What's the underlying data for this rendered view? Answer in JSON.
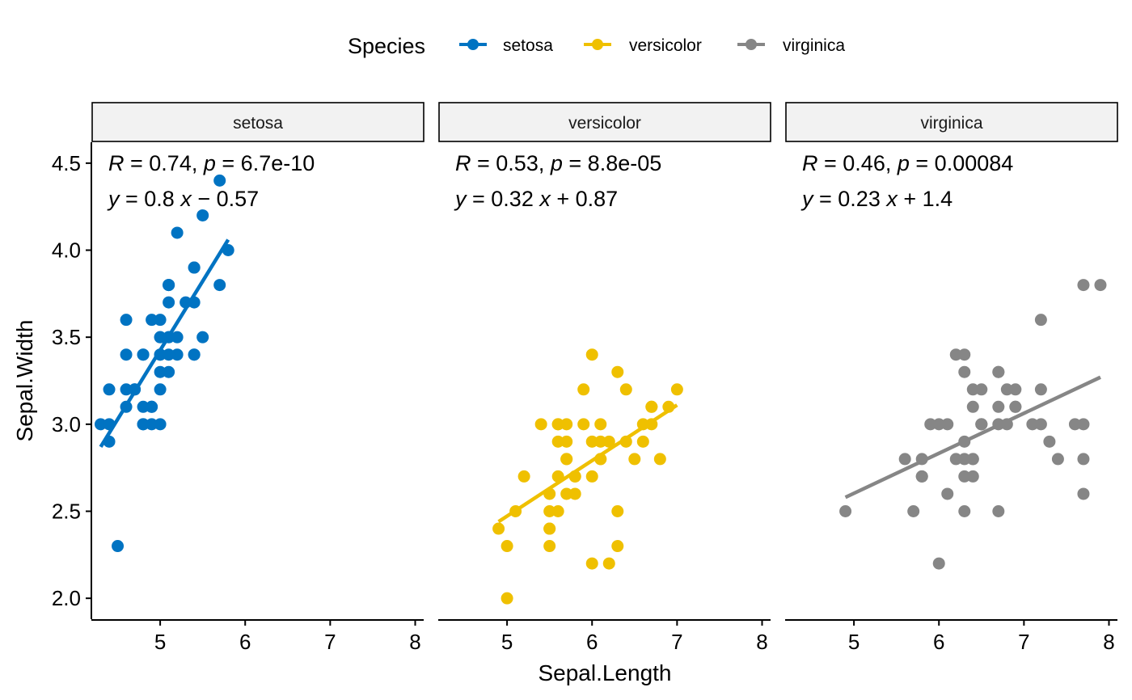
{
  "chart_data": {
    "type": "scatter",
    "xlabel": "Sepal.Length",
    "ylabel": "Sepal.Width",
    "xlim": [
      4.2,
      8.1
    ],
    "ylim": [
      1.88,
      4.62
    ],
    "x_ticks": [
      5,
      6,
      7,
      8
    ],
    "y_ticks": [
      "2.0",
      "2.5",
      "3.0",
      "3.5",
      "4.0",
      "4.5"
    ],
    "legend": {
      "title": "Species",
      "position": "top",
      "entries": [
        "setosa",
        "versicolor",
        "virginica"
      ]
    },
    "series": [
      {
        "name": "setosa",
        "color": "#0073C2",
        "stat_r": "0.74",
        "stat_p": "6.7e-10",
        "eq_slope": "0.8",
        "eq_op": "−",
        "eq_intercept": "0.57",
        "fit": {
          "x": [
            4.3,
            5.8
          ],
          "y": [
            2.87,
            4.06
          ]
        },
        "points": [
          [
            5.1,
            3.5
          ],
          [
            4.9,
            3.0
          ],
          [
            4.7,
            3.2
          ],
          [
            4.6,
            3.1
          ],
          [
            5.0,
            3.6
          ],
          [
            5.4,
            3.9
          ],
          [
            4.6,
            3.4
          ],
          [
            5.0,
            3.4
          ],
          [
            4.4,
            2.9
          ],
          [
            4.9,
            3.1
          ],
          [
            5.4,
            3.7
          ],
          [
            4.8,
            3.4
          ],
          [
            4.8,
            3.0
          ],
          [
            4.3,
            3.0
          ],
          [
            5.8,
            4.0
          ],
          [
            5.7,
            4.4
          ],
          [
            5.4,
            3.9
          ],
          [
            5.1,
            3.5
          ],
          [
            5.7,
            3.8
          ],
          [
            5.1,
            3.8
          ],
          [
            5.4,
            3.4
          ],
          [
            5.1,
            3.7
          ],
          [
            4.6,
            3.6
          ],
          [
            5.1,
            3.3
          ],
          [
            4.8,
            3.4
          ],
          [
            5.0,
            3.0
          ],
          [
            5.0,
            3.4
          ],
          [
            5.2,
            3.5
          ],
          [
            5.2,
            3.4
          ],
          [
            4.7,
            3.2
          ],
          [
            4.8,
            3.1
          ],
          [
            5.4,
            3.4
          ],
          [
            5.2,
            4.1
          ],
          [
            5.5,
            4.2
          ],
          [
            4.9,
            3.1
          ],
          [
            5.0,
            3.2
          ],
          [
            5.5,
            3.5
          ],
          [
            4.9,
            3.6
          ],
          [
            4.4,
            3.0
          ],
          [
            5.1,
            3.4
          ],
          [
            5.0,
            3.5
          ],
          [
            4.5,
            2.3
          ],
          [
            4.4,
            3.2
          ],
          [
            5.0,
            3.5
          ],
          [
            5.1,
            3.8
          ],
          [
            4.8,
            3.0
          ],
          [
            5.1,
            3.8
          ],
          [
            4.6,
            3.2
          ],
          [
            5.3,
            3.7
          ],
          [
            5.0,
            3.3
          ]
        ]
      },
      {
        "name": "versicolor",
        "color": "#EFC000",
        "stat_r": "0.53",
        "stat_p": "8.8e-05",
        "eq_slope": "0.32",
        "eq_op": "+",
        "eq_intercept": "0.87",
        "fit": {
          "x": [
            4.9,
            7.0
          ],
          "y": [
            2.44,
            3.11
          ]
        },
        "points": [
          [
            7.0,
            3.2
          ],
          [
            6.4,
            3.2
          ],
          [
            6.9,
            3.1
          ],
          [
            5.5,
            2.3
          ],
          [
            6.5,
            2.8
          ],
          [
            5.7,
            2.8
          ],
          [
            6.3,
            3.3
          ],
          [
            4.9,
            2.4
          ],
          [
            6.6,
            2.9
          ],
          [
            5.2,
            2.7
          ],
          [
            5.0,
            2.0
          ],
          [
            5.9,
            3.0
          ],
          [
            6.0,
            2.2
          ],
          [
            6.1,
            2.9
          ],
          [
            5.6,
            2.9
          ],
          [
            6.7,
            3.1
          ],
          [
            5.6,
            3.0
          ],
          [
            5.8,
            2.7
          ],
          [
            6.2,
            2.2
          ],
          [
            5.6,
            2.5
          ],
          [
            5.9,
            3.2
          ],
          [
            6.1,
            2.8
          ],
          [
            6.3,
            2.5
          ],
          [
            6.1,
            2.8
          ],
          [
            6.4,
            2.9
          ],
          [
            6.6,
            3.0
          ],
          [
            6.8,
            2.8
          ],
          [
            6.7,
            3.0
          ],
          [
            6.0,
            2.9
          ],
          [
            5.7,
            2.6
          ],
          [
            5.5,
            2.4
          ],
          [
            5.5,
            2.4
          ],
          [
            5.8,
            2.7
          ],
          [
            6.0,
            2.7
          ],
          [
            5.4,
            3.0
          ],
          [
            6.0,
            3.4
          ],
          [
            6.7,
            3.1
          ],
          [
            6.3,
            2.3
          ],
          [
            5.6,
            3.0
          ],
          [
            5.5,
            2.5
          ],
          [
            5.5,
            2.6
          ],
          [
            6.1,
            3.0
          ],
          [
            5.8,
            2.6
          ],
          [
            5.0,
            2.3
          ],
          [
            5.6,
            2.7
          ],
          [
            5.7,
            3.0
          ],
          [
            5.7,
            2.9
          ],
          [
            6.2,
            2.9
          ],
          [
            5.1,
            2.5
          ],
          [
            5.7,
            2.8
          ]
        ]
      },
      {
        "name": "virginica",
        "color": "#868686",
        "stat_r": "0.46",
        "stat_p": "0.00084",
        "eq_slope": "0.23",
        "eq_op": "+",
        "eq_intercept": "1.4",
        "fit": {
          "x": [
            4.9,
            7.9
          ],
          "y": [
            2.58,
            3.27
          ]
        },
        "points": [
          [
            6.3,
            3.3
          ],
          [
            5.8,
            2.7
          ],
          [
            7.1,
            3.0
          ],
          [
            6.3,
            2.9
          ],
          [
            6.5,
            3.0
          ],
          [
            7.6,
            3.0
          ],
          [
            4.9,
            2.5
          ],
          [
            7.3,
            2.9
          ],
          [
            6.7,
            2.5
          ],
          [
            7.2,
            3.6
          ],
          [
            6.5,
            3.2
          ],
          [
            6.4,
            2.7
          ],
          [
            6.8,
            3.0
          ],
          [
            5.7,
            2.5
          ],
          [
            5.8,
            2.8
          ],
          [
            6.4,
            3.2
          ],
          [
            6.5,
            3.0
          ],
          [
            7.7,
            3.8
          ],
          [
            7.7,
            2.6
          ],
          [
            6.0,
            2.2
          ],
          [
            6.9,
            3.2
          ],
          [
            5.6,
            2.8
          ],
          [
            7.7,
            2.8
          ],
          [
            6.3,
            2.7
          ],
          [
            6.7,
            3.3
          ],
          [
            7.2,
            3.2
          ],
          [
            6.2,
            2.8
          ],
          [
            6.1,
            3.0
          ],
          [
            6.4,
            2.8
          ],
          [
            7.2,
            3.0
          ],
          [
            7.4,
            2.8
          ],
          [
            7.9,
            3.8
          ],
          [
            6.4,
            2.8
          ],
          [
            6.3,
            2.8
          ],
          [
            6.1,
            2.6
          ],
          [
            7.7,
            3.0
          ],
          [
            6.3,
            3.4
          ],
          [
            6.4,
            3.1
          ],
          [
            6.0,
            3.0
          ],
          [
            6.9,
            3.1
          ],
          [
            6.7,
            3.1
          ],
          [
            6.9,
            3.1
          ],
          [
            5.8,
            2.7
          ],
          [
            6.8,
            3.2
          ],
          [
            6.7,
            3.3
          ],
          [
            6.7,
            3.0
          ],
          [
            6.3,
            2.5
          ],
          [
            6.5,
            3.0
          ],
          [
            6.2,
            3.4
          ],
          [
            5.9,
            3.0
          ]
        ]
      }
    ]
  }
}
